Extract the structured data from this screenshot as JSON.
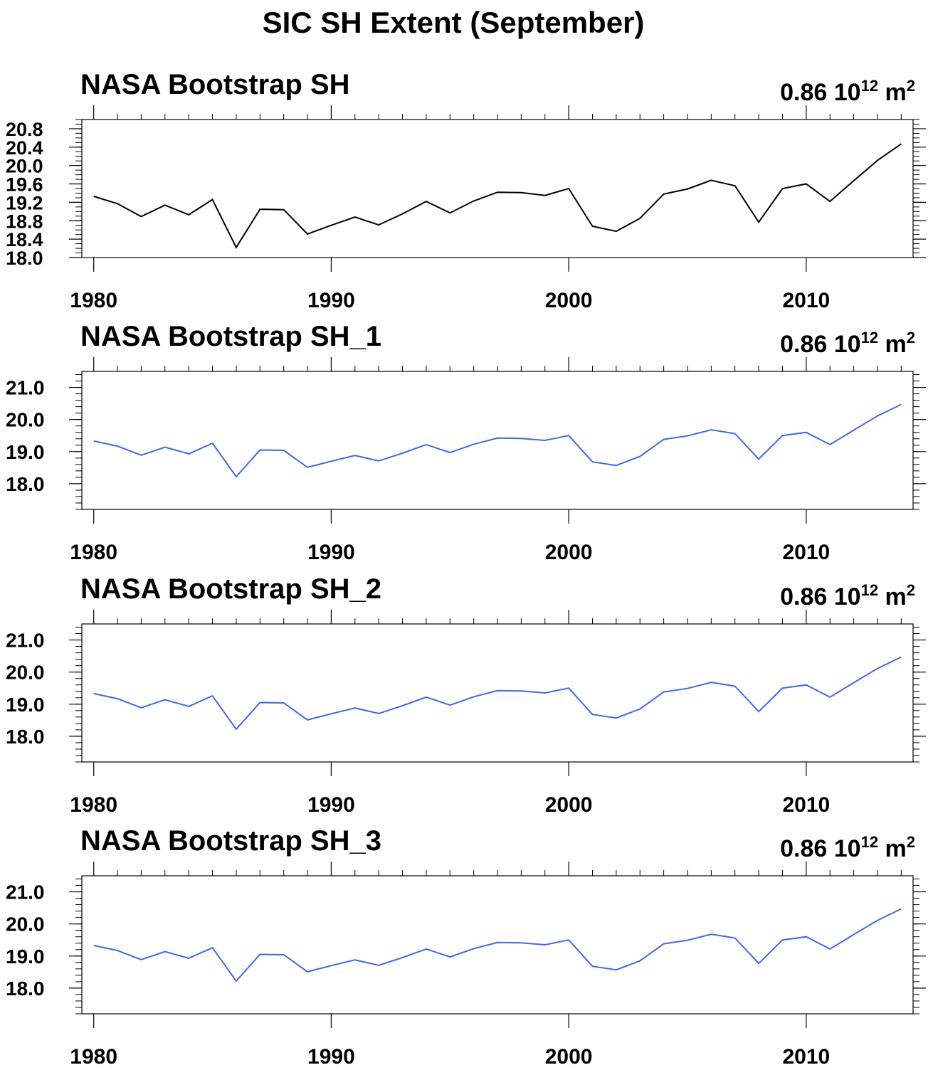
{
  "figure": {
    "title": "SIC SH Extent (September)"
  },
  "chart_data": [
    {
      "type": "line",
      "title": "NASA Bootstrap SH",
      "annotation": {
        "value": "0.86",
        "base": "10",
        "exponent": "12",
        "unit": "m",
        "unit_power": "2"
      },
      "line_color": "#000000",
      "ylim": [
        18.0,
        21.0
      ],
      "yticks": [
        18.0,
        18.4,
        18.8,
        19.2,
        19.6,
        20.0,
        20.4,
        20.8
      ],
      "yticklabels": [
        "18.0",
        "18.4",
        "18.8",
        "19.2",
        "19.6",
        "20.0",
        "20.4",
        "20.8"
      ],
      "xlim": [
        1979.5,
        2014.5
      ],
      "xticks": [
        1980,
        1990,
        2000,
        2010
      ],
      "xticklabels": [
        "1980",
        "1990",
        "2000",
        "2010"
      ],
      "series": [
        {
          "x": [
            1980,
            1981,
            1982,
            1983,
            1984,
            1985,
            1986,
            1987,
            1988,
            1989,
            1990,
            1991,
            1992,
            1993,
            1994,
            1995,
            1996,
            1997,
            1998,
            1999,
            2000,
            2001,
            2002,
            2003,
            2004,
            2005,
            2006,
            2007,
            2008,
            2009,
            2010,
            2011,
            2012,
            2013,
            2014
          ],
          "values": [
            19.33,
            19.17,
            18.89,
            19.14,
            18.93,
            19.26,
            18.22,
            19.05,
            19.04,
            18.51,
            18.7,
            18.88,
            18.71,
            18.95,
            19.22,
            18.97,
            19.23,
            19.42,
            19.41,
            19.35,
            19.5,
            18.68,
            18.57,
            18.85,
            19.38,
            19.49,
            19.68,
            19.56,
            18.77,
            19.5,
            19.6,
            19.22,
            19.67,
            20.11,
            20.47
          ]
        }
      ]
    },
    {
      "type": "line",
      "title": "NASA Bootstrap SH_1",
      "annotation": {
        "value": "0.86",
        "base": "10",
        "exponent": "12",
        "unit": "m",
        "unit_power": "2"
      },
      "line_color": "#4169e1",
      "ylim": [
        17.2,
        21.5
      ],
      "yticks": [
        18.0,
        19.0,
        20.0,
        21.0
      ],
      "yticklabels": [
        "18.0",
        "19.0",
        "20.0",
        "21.0"
      ],
      "xlim": [
        1979.5,
        2014.5
      ],
      "xticks": [
        1980,
        1990,
        2000,
        2010
      ],
      "xticklabels": [
        "1980",
        "1990",
        "2000",
        "2010"
      ],
      "series": [
        {
          "x": [
            1980,
            1981,
            1982,
            1983,
            1984,
            1985,
            1986,
            1987,
            1988,
            1989,
            1990,
            1991,
            1992,
            1993,
            1994,
            1995,
            1996,
            1997,
            1998,
            1999,
            2000,
            2001,
            2002,
            2003,
            2004,
            2005,
            2006,
            2007,
            2008,
            2009,
            2010,
            2011,
            2012,
            2013,
            2014
          ],
          "values": [
            19.33,
            19.17,
            18.89,
            19.14,
            18.93,
            19.26,
            18.22,
            19.05,
            19.04,
            18.51,
            18.7,
            18.88,
            18.71,
            18.95,
            19.22,
            18.97,
            19.23,
            19.42,
            19.41,
            19.35,
            19.5,
            18.68,
            18.57,
            18.85,
            19.38,
            19.49,
            19.68,
            19.56,
            18.77,
            19.5,
            19.6,
            19.22,
            19.67,
            20.11,
            20.47
          ]
        }
      ]
    },
    {
      "type": "line",
      "title": "NASA Bootstrap SH_2",
      "annotation": {
        "value": "0.86",
        "base": "10",
        "exponent": "12",
        "unit": "m",
        "unit_power": "2"
      },
      "line_color": "#4169e1",
      "ylim": [
        17.2,
        21.5
      ],
      "yticks": [
        18.0,
        19.0,
        20.0,
        21.0
      ],
      "yticklabels": [
        "18.0",
        "19.0",
        "20.0",
        "21.0"
      ],
      "xlim": [
        1979.5,
        2014.5
      ],
      "xticks": [
        1980,
        1990,
        2000,
        2010
      ],
      "xticklabels": [
        "1980",
        "1990",
        "2000",
        "2010"
      ],
      "series": [
        {
          "x": [
            1980,
            1981,
            1982,
            1983,
            1984,
            1985,
            1986,
            1987,
            1988,
            1989,
            1990,
            1991,
            1992,
            1993,
            1994,
            1995,
            1996,
            1997,
            1998,
            1999,
            2000,
            2001,
            2002,
            2003,
            2004,
            2005,
            2006,
            2007,
            2008,
            2009,
            2010,
            2011,
            2012,
            2013,
            2014
          ],
          "values": [
            19.33,
            19.17,
            18.89,
            19.14,
            18.93,
            19.26,
            18.22,
            19.05,
            19.04,
            18.51,
            18.7,
            18.88,
            18.71,
            18.95,
            19.22,
            18.97,
            19.23,
            19.42,
            19.41,
            19.35,
            19.5,
            18.68,
            18.57,
            18.85,
            19.38,
            19.49,
            19.68,
            19.56,
            18.77,
            19.5,
            19.6,
            19.22,
            19.67,
            20.11,
            20.47
          ]
        }
      ]
    },
    {
      "type": "line",
      "title": "NASA Bootstrap SH_3",
      "annotation": {
        "value": "0.86",
        "base": "10",
        "exponent": "12",
        "unit": "m",
        "unit_power": "2"
      },
      "line_color": "#4169e1",
      "ylim": [
        17.2,
        21.5
      ],
      "yticks": [
        18.0,
        19.0,
        20.0,
        21.0
      ],
      "yticklabels": [
        "18.0",
        "19.0",
        "20.0",
        "21.0"
      ],
      "xlim": [
        1979.5,
        2014.5
      ],
      "xticks": [
        1980,
        1990,
        2000,
        2010
      ],
      "xticklabels": [
        "1980",
        "1990",
        "2000",
        "2010"
      ],
      "series": [
        {
          "x": [
            1980,
            1981,
            1982,
            1983,
            1984,
            1985,
            1986,
            1987,
            1988,
            1989,
            1990,
            1991,
            1992,
            1993,
            1994,
            1995,
            1996,
            1997,
            1998,
            1999,
            2000,
            2001,
            2002,
            2003,
            2004,
            2005,
            2006,
            2007,
            2008,
            2009,
            2010,
            2011,
            2012,
            2013,
            2014
          ],
          "values": [
            19.33,
            19.17,
            18.89,
            19.14,
            18.93,
            19.26,
            18.22,
            19.05,
            19.04,
            18.51,
            18.7,
            18.88,
            18.71,
            18.95,
            19.22,
            18.97,
            19.23,
            19.42,
            19.41,
            19.35,
            19.5,
            18.68,
            18.57,
            18.85,
            19.38,
            19.49,
            19.68,
            19.56,
            18.77,
            19.5,
            19.6,
            19.22,
            19.67,
            20.11,
            20.47
          ]
        }
      ]
    }
  ]
}
